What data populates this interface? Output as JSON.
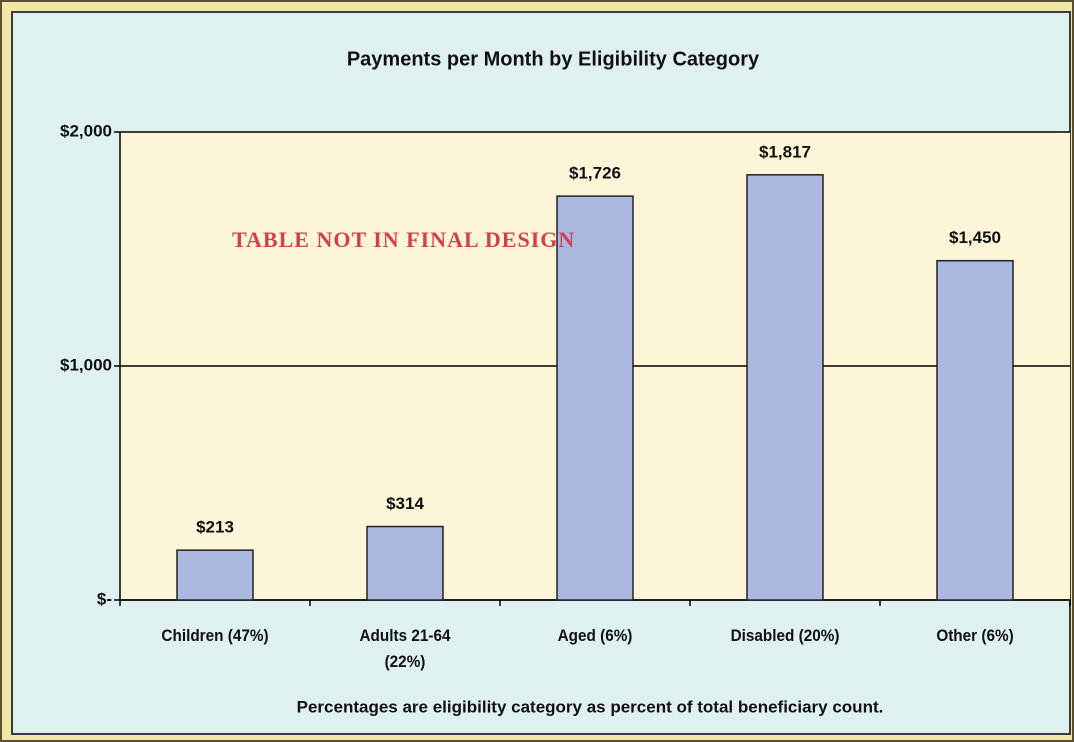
{
  "chart_data": {
    "type": "bar",
    "title": "Payments per Month by Eligibility Category",
    "categories": [
      "Children (47%)",
      "Adults 21-64 (22%)",
      "Aged (6%)",
      "Disabled (20%)",
      "Other (6%)"
    ],
    "values": [
      213,
      314,
      1726,
      1817,
      1450
    ],
    "value_labels": [
      "$213",
      "$314",
      "$1,726",
      "$1,817",
      "$1,450"
    ],
    "color": "#aab8e0",
    "ylim": [
      0,
      2000
    ],
    "yticks": [
      {
        "value": 0,
        "label": "$-"
      },
      {
        "value": 1000,
        "label": "$1,000"
      },
      {
        "value": 2000,
        "label": "$2,000"
      }
    ],
    "grid": true,
    "footnote": "Percentages are eligibility category as percent of total beneficiary count.",
    "annotation": "TABLE NOT IN FINAL DESIGN"
  }
}
